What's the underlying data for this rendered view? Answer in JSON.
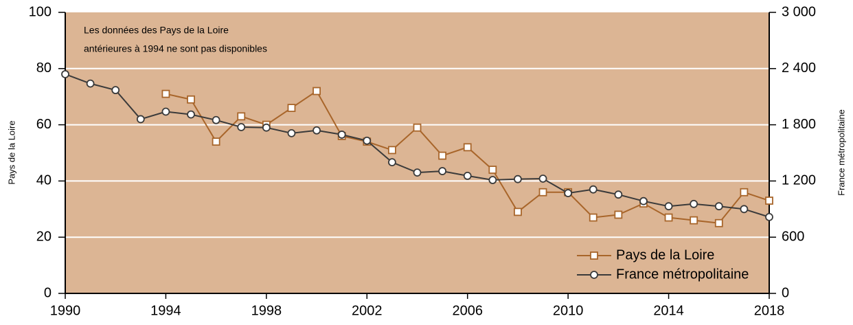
{
  "chart_data": {
    "type": "line",
    "annotation": [
      "Les données des Pays de la Loire",
      "antérieures à 1994 ne sont pas disponibles"
    ],
    "ylabel": "Pays de la Loire",
    "y2label": "France métropolitaine",
    "x": [
      1990,
      1991,
      1992,
      1993,
      1994,
      1995,
      1996,
      1997,
      1998,
      1999,
      2000,
      2001,
      2002,
      2003,
      2004,
      2005,
      2006,
      2007,
      2008,
      2009,
      2010,
      2011,
      2012,
      2013,
      2014,
      2015,
      2016,
      2017,
      2018
    ],
    "series": [
      {
        "name": "Pays de la Loire",
        "color": "#a8652a",
        "marker": "square",
        "values": [
          null,
          null,
          null,
          null,
          71,
          69,
          54,
          63,
          60,
          66,
          72,
          56,
          54,
          51,
          59,
          49,
          52,
          44,
          29,
          36,
          36,
          27,
          28,
          32,
          27,
          26,
          25,
          36,
          33
        ]
      },
      {
        "name": "France métropolitaine",
        "color": "#3a3a3a",
        "marker": "circle",
        "axis": "y2",
        "values": [
          2340,
          2240,
          2170,
          1860,
          1940,
          1910,
          1850,
          1775,
          1770,
          1710,
          1740,
          1695,
          1630,
          1400,
          1290,
          1305,
          1255,
          1210,
          1220,
          1225,
          1070,
          1110,
          1055,
          985,
          930,
          955,
          930,
          900,
          815
        ]
      }
    ],
    "xlim": [
      1990,
      2018
    ],
    "xticks": [
      1990,
      1994,
      1998,
      2002,
      2006,
      2010,
      2014,
      2018
    ],
    "ylim": [
      0,
      100
    ],
    "yticks": [
      0,
      20,
      40,
      60,
      80,
      100
    ],
    "y2lim": [
      0,
      3000
    ],
    "y2ticks": [
      0,
      600,
      {
        "value": 1200,
        "label": "1 200"
      },
      {
        "value": 1800,
        "label": "1 800"
      },
      {
        "value": 2400,
        "label": "2 400"
      },
      {
        "value": 3000,
        "label": "3 000"
      }
    ],
    "grid": true,
    "legend": "lower right"
  }
}
